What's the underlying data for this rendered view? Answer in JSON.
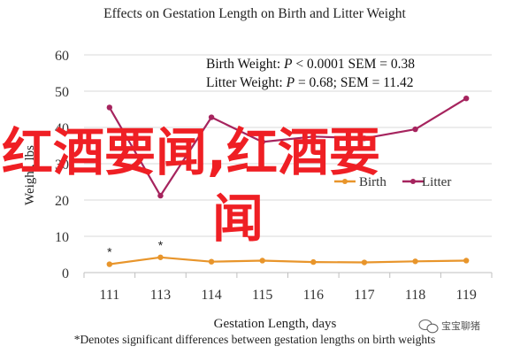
{
  "chart_data": {
    "type": "line",
    "title": "Effects on Gestation Length on Birth and Litter Weight",
    "xlabel": "Gestation Length, days",
    "ylabel": "Weight, lbs",
    "categories": [
      "111",
      "113",
      "114",
      "115",
      "116",
      "117",
      "118",
      "119"
    ],
    "ylim": [
      0,
      60
    ],
    "yticks": [
      "0",
      "10",
      "20",
      "30",
      "40",
      "50",
      "60"
    ],
    "grid": "horizontal",
    "legend_position": "bottom-right",
    "series": [
      {
        "name": "Birth",
        "color": "#e8952b",
        "values": [
          2.3,
          4.2,
          3.0,
          3.3,
          2.9,
          2.8,
          3.1,
          3.3
        ]
      },
      {
        "name": "Litter",
        "color": "#a6245e",
        "values": [
          45.5,
          21.2,
          42.8,
          36.0,
          37.5,
          37.0,
          39.5,
          48.0
        ]
      }
    ],
    "significance_markers": [
      {
        "category": "111",
        "text": "*"
      },
      {
        "category": "113",
        "text": "*"
      }
    ],
    "stats_lines": [
      {
        "label": "Birth Weight: ",
        "p_symbol": "P",
        "rest": " < 0.0001 SEM = 0.38"
      },
      {
        "label": "Litter Weight: ",
        "p_symbol": "P",
        "rest": " = 0.68; SEM = 11.42"
      }
    ],
    "footnote": "*Denotes significant differences between gestation lengths on birth weights"
  },
  "overlay": {
    "line1": "红酒要闻,红酒要",
    "line2": "闻",
    "color": "#ef1f24"
  },
  "watermark": {
    "icon": "wechat-icon",
    "text": "宝宝聊猪"
  }
}
